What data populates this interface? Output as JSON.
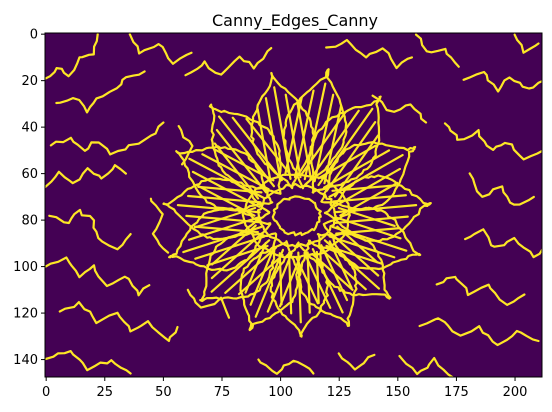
{
  "title": "Canny_Edges_Canny",
  "image": {
    "columns": 212,
    "rows": 148,
    "colormap": "viridis",
    "background_color": "#440154",
    "edge_color": "#fde725",
    "subject": "flower-edges"
  },
  "axes": {
    "x_ticks": [
      {
        "value": 0,
        "label": "0"
      },
      {
        "value": 25,
        "label": "25"
      },
      {
        "value": 50,
        "label": "50"
      },
      {
        "value": 75,
        "label": "75"
      },
      {
        "value": 100,
        "label": "100"
      },
      {
        "value": 125,
        "label": "125"
      },
      {
        "value": 150,
        "label": "150"
      },
      {
        "value": 175,
        "label": "175"
      },
      {
        "value": 200,
        "label": "200"
      }
    ],
    "y_ticks": [
      {
        "value": 0,
        "label": "0"
      },
      {
        "value": 20,
        "label": "20"
      },
      {
        "value": 40,
        "label": "40"
      },
      {
        "value": 60,
        "label": "60"
      },
      {
        "value": 80,
        "label": "80"
      },
      {
        "value": 100,
        "label": "100"
      },
      {
        "value": 120,
        "label": "120"
      },
      {
        "value": 140,
        "label": "140"
      }
    ]
  }
}
